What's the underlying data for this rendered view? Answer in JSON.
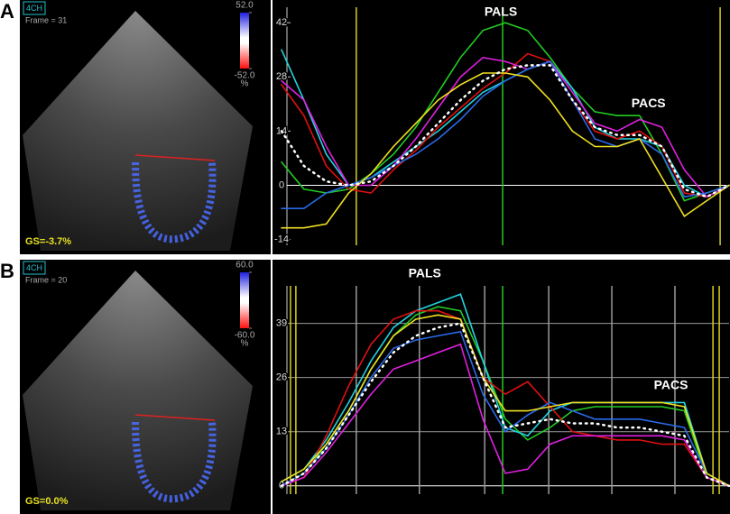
{
  "chart_data": [
    {
      "type": "line",
      "panel_label": "A",
      "view_label": "4CH",
      "frame_label": "Frame = 31",
      "global_strain": "GS=-3.7%",
      "colorbar": {
        "ticks": [
          {
            "value": 52,
            "label": "52.0"
          },
          {
            "value": -52,
            "label": "-52.0"
          }
        ],
        "unit": "%"
      },
      "annotations": [
        {
          "text": "PALS",
          "x": 49,
          "y": 44.7
        },
        {
          "text": "PACS",
          "x": 82,
          "y": 21
        }
      ],
      "xlim": [
        0,
        100
      ],
      "ylim": [
        -15.5,
        46
      ],
      "yticks": [
        -14,
        0,
        14,
        28,
        42
      ],
      "grid": false,
      "zero_line": true,
      "vlines": [
        {
          "x": 16.7,
          "color": "#d8d020"
        },
        {
          "x": 49.4,
          "color": "#22cc22"
        },
        {
          "x": 98,
          "color": "#d8d020"
        }
      ],
      "x": [
        0,
        5,
        10,
        15,
        20,
        25,
        30,
        35,
        40,
        45,
        50,
        55,
        60,
        65,
        70,
        75,
        80,
        85,
        90,
        95,
        100
      ],
      "series": [
        {
          "color": "#22cc22",
          "values": [
            6,
            -1,
            -2,
            -1,
            3,
            8,
            15,
            24,
            33,
            40,
            42,
            40,
            33,
            25,
            19,
            18,
            18,
            8,
            -4,
            -2,
            0
          ]
        },
        {
          "color": "#22d3e0",
          "values": [
            35,
            22,
            8,
            0,
            2,
            6,
            10,
            14,
            19,
            24,
            27,
            30,
            32,
            25,
            15,
            12,
            12,
            10,
            0,
            -3,
            0
          ]
        },
        {
          "color": "#e01010",
          "values": [
            26,
            18,
            5,
            -1,
            -2,
            4,
            9,
            15,
            20,
            25,
            29,
            34,
            32,
            22,
            14,
            12,
            14,
            10,
            -2,
            -3,
            0
          ]
        },
        {
          "color": "#e020e0",
          "values": [
            27,
            22,
            10,
            0,
            0,
            5,
            12,
            20,
            28,
            33,
            32,
            30,
            32,
            24,
            16,
            14,
            17,
            15,
            4,
            -3,
            0
          ]
        },
        {
          "color": "#2a6ae8",
          "values": [
            -6,
            -6,
            -2,
            0,
            2,
            5,
            8,
            12,
            17,
            23,
            27,
            30,
            32,
            22,
            12,
            10,
            12,
            8,
            -3,
            -2,
            0
          ]
        },
        {
          "color": "#f0e020",
          "values": [
            -11,
            -11,
            -10,
            -2,
            3,
            10,
            16,
            22,
            26,
            29,
            29,
            28,
            22,
            14,
            10,
            10,
            12,
            2,
            -8,
            -4,
            0
          ]
        },
        {
          "color": "#ffffff",
          "style": "dotted",
          "values": [
            14,
            5,
            1,
            0,
            1,
            5,
            10,
            16,
            22,
            27,
            30,
            31,
            31,
            22,
            15,
            13,
            13,
            10,
            -1,
            -3,
            0
          ]
        }
      ]
    },
    {
      "type": "line",
      "panel_label": "B",
      "view_label": "4CH",
      "frame_label": "Frame = 20",
      "global_strain": "GS=0.0%",
      "colorbar": {
        "ticks": [
          {
            "value": 60,
            "label": "60.0"
          },
          {
            "value": -60,
            "label": "-60.0"
          }
        ],
        "unit": "%"
      },
      "annotations": [
        {
          "text": "PALS",
          "x": 32,
          "y": 50.9
        },
        {
          "text": "PACS",
          "x": 87,
          "y": 24
        }
      ],
      "xlim": [
        0,
        100
      ],
      "ylim": [
        -2,
        48
      ],
      "yticks": [
        0,
        13,
        26,
        39
      ],
      "grid": true,
      "zero_line": true,
      "vlines": [
        {
          "x": 2,
          "color": "#d8d020"
        },
        {
          "x": 3.2,
          "color": "#d8d020"
        },
        {
          "x": 16.7,
          "color": "#9a9a9a"
        },
        {
          "x": 30.8,
          "color": "#9a9a9a"
        },
        {
          "x": 45.4,
          "color": "#9a9a9a"
        },
        {
          "x": 49.4,
          "color": "#22cc22"
        },
        {
          "x": 59.7,
          "color": "#9a9a9a"
        },
        {
          "x": 73.8,
          "color": "#9a9a9a"
        },
        {
          "x": 87.9,
          "color": "#9a9a9a"
        },
        {
          "x": 96.4,
          "color": "#d8d020"
        },
        {
          "x": 97.8,
          "color": "#d8d020"
        }
      ],
      "x": [
        0,
        5,
        10,
        15,
        20,
        25,
        30,
        35,
        40,
        45,
        50,
        55,
        60,
        65,
        70,
        75,
        80,
        85,
        90,
        95,
        100
      ],
      "series": [
        {
          "color": "#22cc22",
          "values": [
            0,
            3,
            10,
            18,
            28,
            36,
            41,
            43,
            42,
            30,
            16,
            11,
            14,
            18,
            19,
            19,
            19,
            19,
            18,
            2,
            0
          ]
        },
        {
          "color": "#22d3e0",
          "values": [
            1,
            4,
            11,
            20,
            30,
            38,
            42,
            44,
            46,
            30,
            14,
            12,
            18,
            20,
            20,
            20,
            20,
            20,
            20,
            3,
            0
          ]
        },
        {
          "color": "#e01010",
          "values": [
            0,
            2,
            12,
            24,
            34,
            40,
            42,
            42,
            40,
            26,
            22,
            25,
            19,
            13,
            12,
            11,
            11,
            10,
            10,
            2,
            0
          ]
        },
        {
          "color": "#e020e0",
          "values": [
            0,
            2,
            8,
            15,
            22,
            28,
            30,
            32,
            34,
            16,
            3,
            4,
            10,
            12,
            12,
            12,
            12,
            12,
            11,
            2,
            0
          ]
        },
        {
          "color": "#2a6ae8",
          "values": [
            0,
            3,
            9,
            17,
            26,
            33,
            35,
            36,
            37,
            22,
            13,
            17,
            20,
            18,
            16,
            16,
            16,
            15,
            14,
            3,
            0
          ]
        },
        {
          "color": "#f0e020",
          "values": [
            1,
            4,
            10,
            18,
            28,
            36,
            40,
            41,
            40,
            26,
            18,
            18,
            19,
            20,
            20,
            20,
            20,
            20,
            19,
            3,
            0
          ]
        },
        {
          "color": "#ffffff",
          "style": "dotted",
          "values": [
            0,
            3,
            9,
            17,
            25,
            32,
            36,
            38,
            39,
            26,
            14,
            15,
            16,
            15,
            15,
            14,
            14,
            13,
            12,
            2,
            0
          ]
        }
      ]
    }
  ]
}
